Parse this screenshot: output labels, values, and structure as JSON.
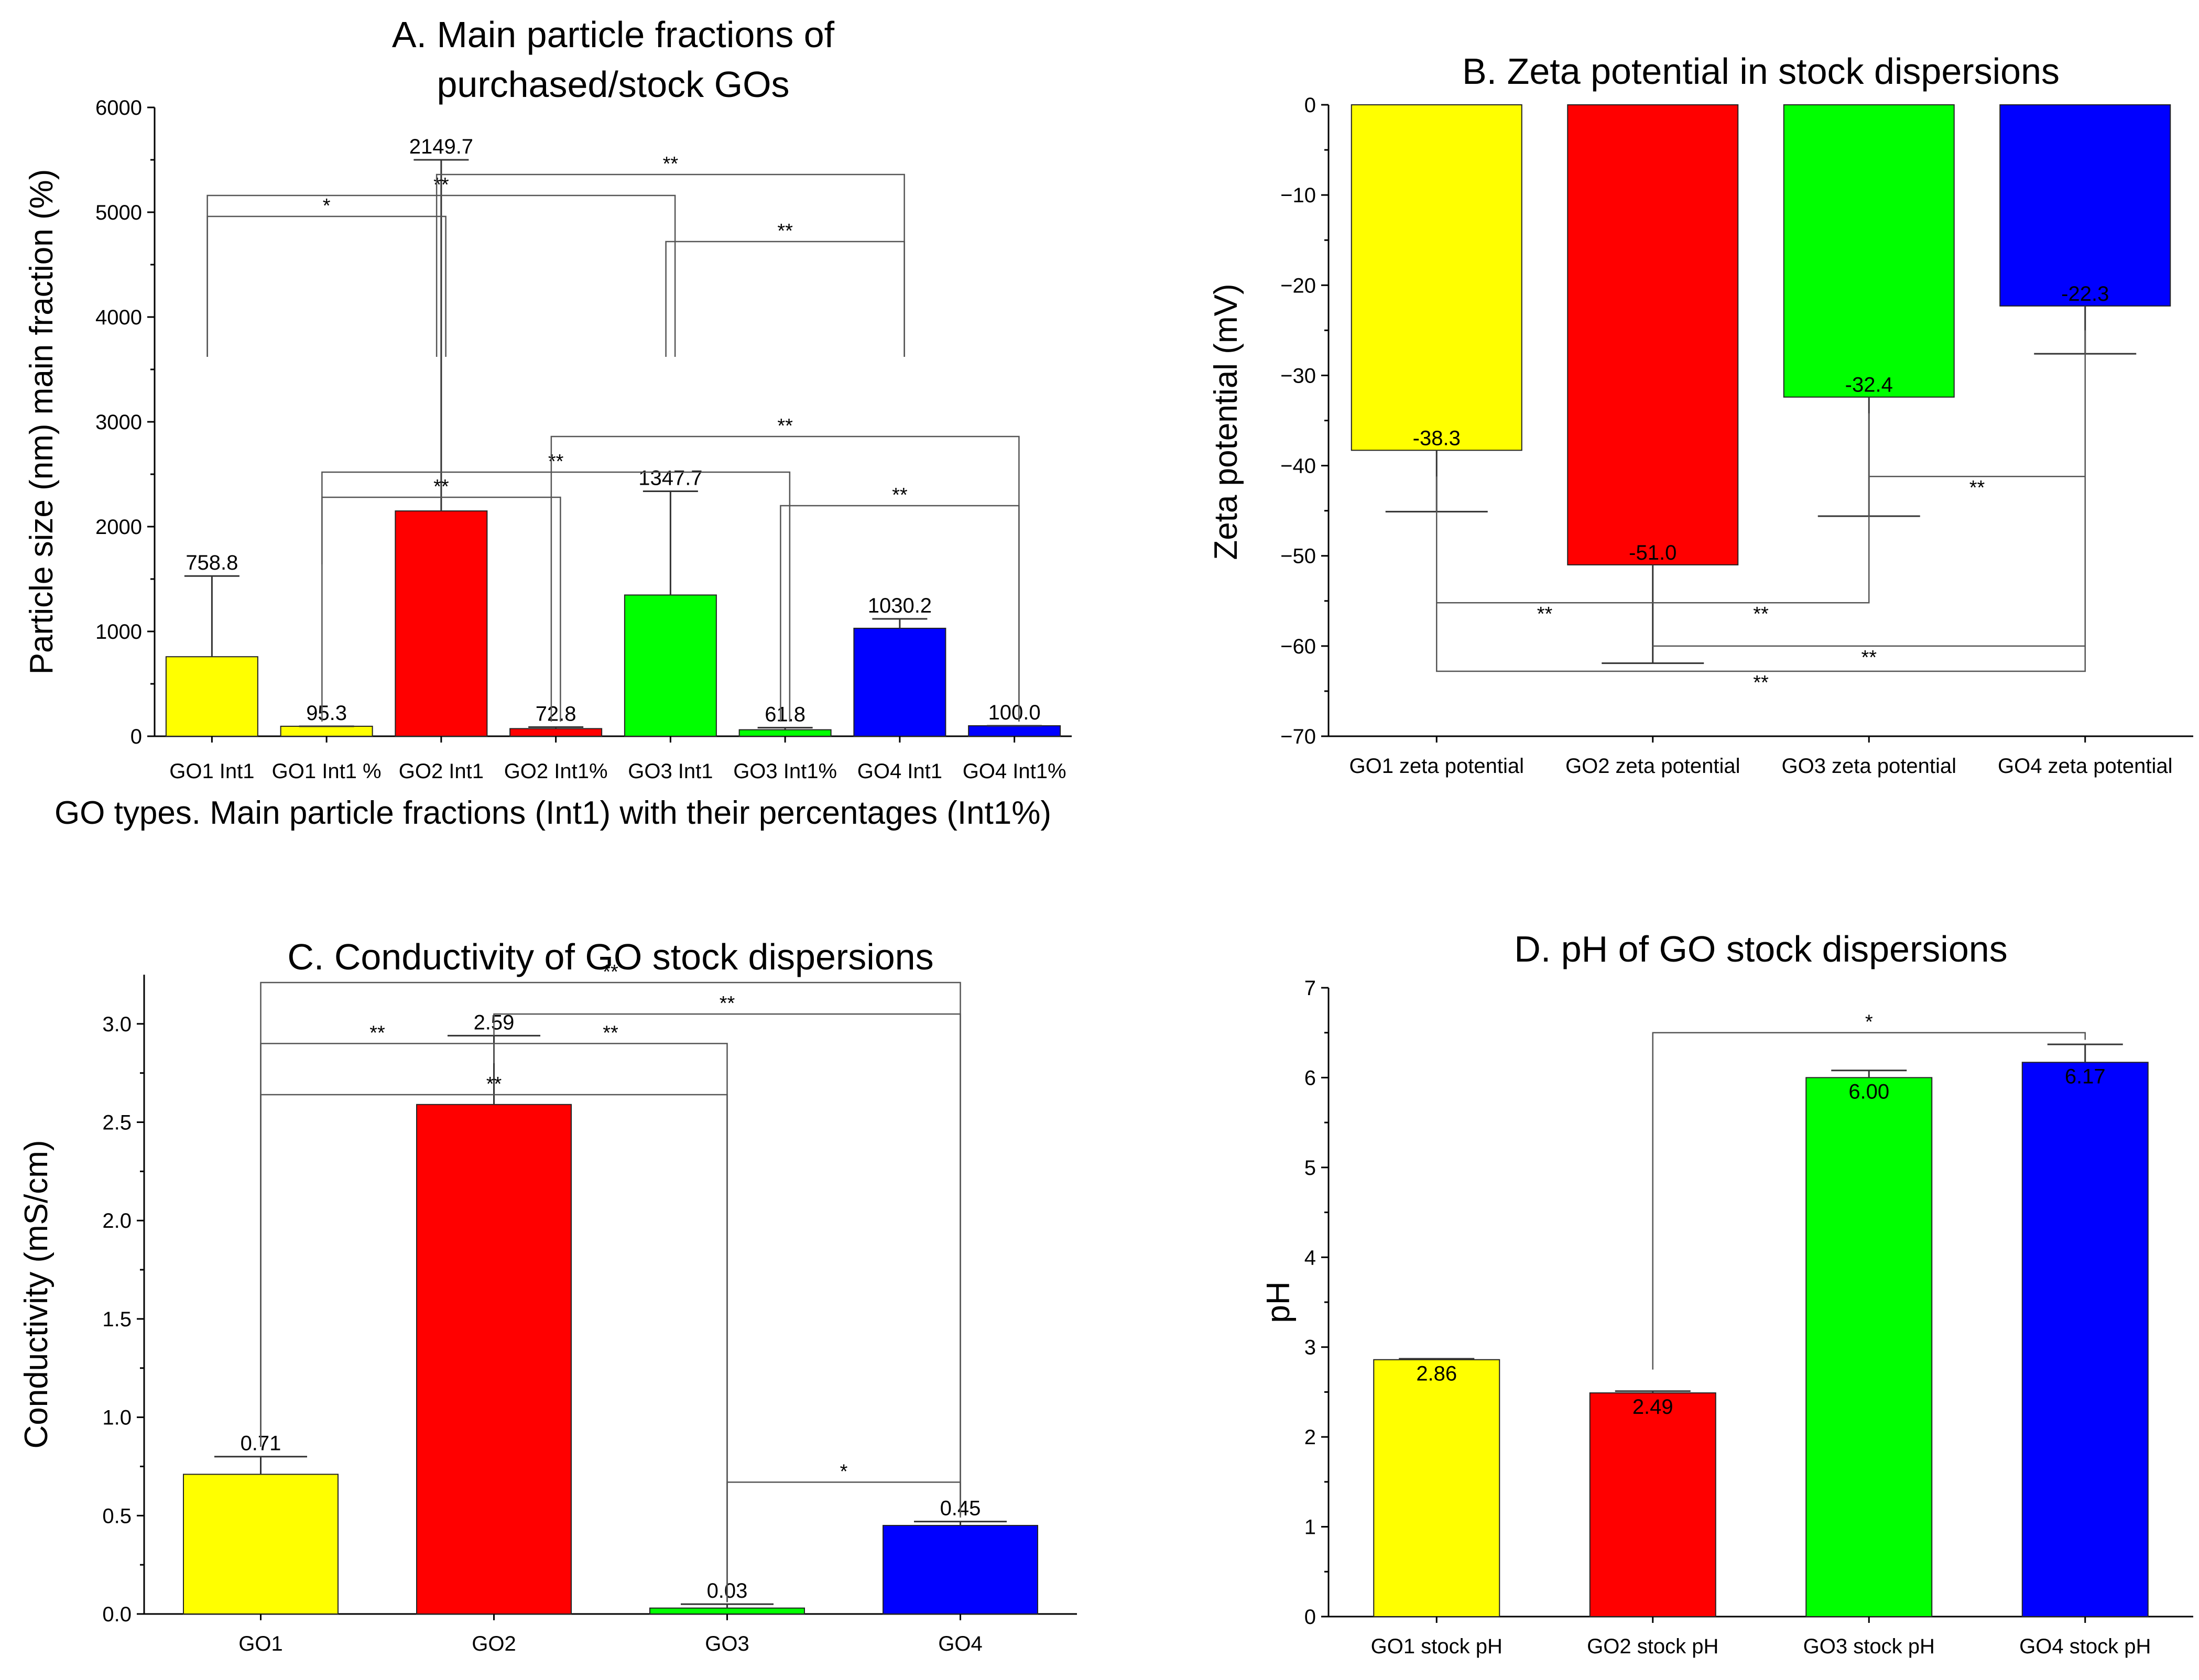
{
  "colors": {
    "yellow": "#ffff00",
    "red": "#ff0000",
    "green": "#00ff00",
    "blue": "#0000ff"
  },
  "chart_data": [
    {
      "id": "A",
      "type": "bar",
      "title": [
        "A. Main particle fractions of",
        "purchased/stock GOs"
      ],
      "xlabel": "GO types. Main particle fractions (Int1) with their percentages (Int1%)",
      "ylabel": "Particle size (nm) main fraction (%)",
      "ylim": [
        0,
        6000
      ],
      "yticks": [
        0,
        1000,
        2000,
        3000,
        4000,
        5000,
        6000
      ],
      "categories": [
        "GO1 Int1",
        "GO1 Int1 %",
        "GO2 Int1",
        "GO2 Int1%",
        "GO3 Int1",
        "GO3 Int1%",
        "GO4 Int1",
        "GO4 Int1%"
      ],
      "values": [
        758.8,
        95.3,
        2149.7,
        72.8,
        1347.7,
        61.8,
        1030.2,
        100.0
      ],
      "value_labels": [
        "758.8",
        "95.3",
        "2149.7",
        "72.8",
        "1347.7",
        "61.8",
        "1030.2",
        "100.0"
      ],
      "errors": [
        770,
        0,
        3350,
        15,
        990,
        20,
        90,
        0
      ],
      "colors": [
        "#ffff00",
        "#ffff00",
        "#ff0000",
        "#ff0000",
        "#00ff00",
        "#00ff00",
        "#0000ff",
        "#0000ff"
      ],
      "significance": [
        {
          "from": 0,
          "to": 2,
          "label": "*",
          "level": 4960,
          "base_from": 3620,
          "base_to": 3620
        },
        {
          "from": 0,
          "to": 4,
          "label": "**",
          "level": 5160,
          "base_from": 3620,
          "base_to": 3620
        },
        {
          "from": 2,
          "to": 6,
          "label": "**",
          "level": 5360,
          "base_from": 3620,
          "base_to": 3620
        },
        {
          "from": 4,
          "to": 6,
          "label": "**",
          "level": 4720,
          "base_from": 3620,
          "base_to": 3620
        },
        {
          "from": 1,
          "to": 5,
          "label": "**",
          "level": 2520,
          "base_from": 140,
          "base_to": 140
        },
        {
          "from": 1,
          "to": 3,
          "label": "**",
          "level": 2280,
          "base_from": 1640,
          "base_to": 140
        },
        {
          "from": 3,
          "to": 7,
          "label": "**",
          "level": 2860,
          "base_from": 140,
          "base_to": 140
        },
        {
          "from": 5,
          "to": 7,
          "label": "**",
          "level": 2200,
          "base_from": 140,
          "base_to": 140
        }
      ]
    },
    {
      "id": "B",
      "type": "bar",
      "title": [
        "B. Zeta potential in stock dispersions"
      ],
      "xlabel": "",
      "ylabel": "Zeta potential (mV)",
      "ylim": [
        -70,
        0
      ],
      "yticks": [
        0,
        -10,
        -20,
        -30,
        -40,
        -50,
        -60,
        -70
      ],
      "categories": [
        "GO1 zeta potential",
        "GO2 zeta potential",
        "GO3 zeta potential",
        "GO4 zeta potential"
      ],
      "values": [
        -38.3,
        -51.0,
        -32.4,
        -22.3
      ],
      "value_labels": [
        "-38.3",
        "-51.0",
        "-32.4",
        "-22.3"
      ],
      "errors": [
        6.8,
        10.9,
        13.2,
        5.3
      ],
      "colors": [
        "#ffff00",
        "#ff0000",
        "#00ff00",
        "#0000ff"
      ],
      "significance": [
        {
          "from": 0,
          "to": 1,
          "label": "**",
          "level": -55.2,
          "base_from": -41.2,
          "base_to": -55.2
        },
        {
          "from": 1,
          "to": 2,
          "label": "**",
          "level": -55.2,
          "base_from": -55.2,
          "base_to": -34.2
        },
        {
          "from": 2,
          "to": 3,
          "label": "**",
          "level": -41.2,
          "base_from": -35.2,
          "base_to": -25.0
        },
        {
          "from": 1,
          "to": 3,
          "label": "**",
          "level": -60.0,
          "base_from": -60.0,
          "base_to": -25.2
        },
        {
          "from": 0,
          "to": 3,
          "label": "**",
          "level": -62.8,
          "base_from": -44.5,
          "base_to": -25.2
        }
      ]
    },
    {
      "id": "C",
      "type": "bar",
      "title": [
        "C. Conductivity of GO stock dispersions"
      ],
      "xlabel": "",
      "ylabel": "Conductivity (mS/cm)",
      "ylim": [
        0,
        3.25
      ],
      "yticks": [
        0.0,
        0.5,
        1.0,
        1.5,
        2.0,
        2.5,
        3.0
      ],
      "ytick_labels": [
        "0.0",
        "0.5",
        "1.0",
        "1.5",
        "2.0",
        "2.5",
        "3.0"
      ],
      "categories": [
        "GO1",
        "GO2",
        "GO3",
        "GO4"
      ],
      "values": [
        0.71,
        2.59,
        0.03,
        0.45
      ],
      "value_labels": [
        "0.71",
        "2.59",
        "0.03",
        "0.45"
      ],
      "errors": [
        0.09,
        0.35,
        0.02,
        0.02
      ],
      "colors": [
        "#ffff00",
        "#ff0000",
        "#00ff00",
        "#0000ff"
      ],
      "significance": [
        {
          "from": 0,
          "to": 3,
          "label": "**",
          "level": 3.21,
          "base_from": 0.85,
          "base_to": 0.5
        },
        {
          "from": 1,
          "to": 3,
          "label": "**",
          "level": 3.05,
          "base_from": 2.94,
          "base_to": 0.5
        },
        {
          "from": 0,
          "to": 1,
          "label": "**",
          "level": 2.9,
          "base_from": 0.85,
          "base_to": 2.8
        },
        {
          "from": 1,
          "to": 2,
          "label": "**",
          "level": 2.9,
          "base_from": 2.8,
          "base_to": 0.06
        },
        {
          "from": 0,
          "to": 2,
          "label": "**",
          "level": 2.64,
          "base_from": 0.85,
          "base_to": 0.06
        },
        {
          "from": 2,
          "to": 3,
          "label": "*",
          "level": 0.67,
          "base_from": 0.06,
          "base_to": 0.49
        }
      ]
    },
    {
      "id": "D",
      "type": "bar",
      "title": [
        "D. pH of GO stock dispersions"
      ],
      "xlabel": "",
      "ylabel": "pH",
      "ylim": [
        0,
        7
      ],
      "yticks": [
        0,
        1,
        2,
        3,
        4,
        5,
        6,
        7
      ],
      "categories": [
        "GO1 stock pH",
        "GO2 stock pH",
        "GO3 stock pH",
        "GO4 stock pH"
      ],
      "values": [
        2.86,
        2.49,
        6.0,
        6.17
      ],
      "value_labels": [
        "2.86",
        "2.49",
        "6.00",
        "6.17"
      ],
      "errors": [
        0.01,
        0.02,
        0.08,
        0.2
      ],
      "colors": [
        "#ffff00",
        "#ff0000",
        "#00ff00",
        "#0000ff"
      ],
      "significance": [
        {
          "from": 1,
          "to": 3,
          "label": "*",
          "level": 6.5,
          "base_from": 2.75,
          "base_to": 6.42
        }
      ]
    }
  ]
}
